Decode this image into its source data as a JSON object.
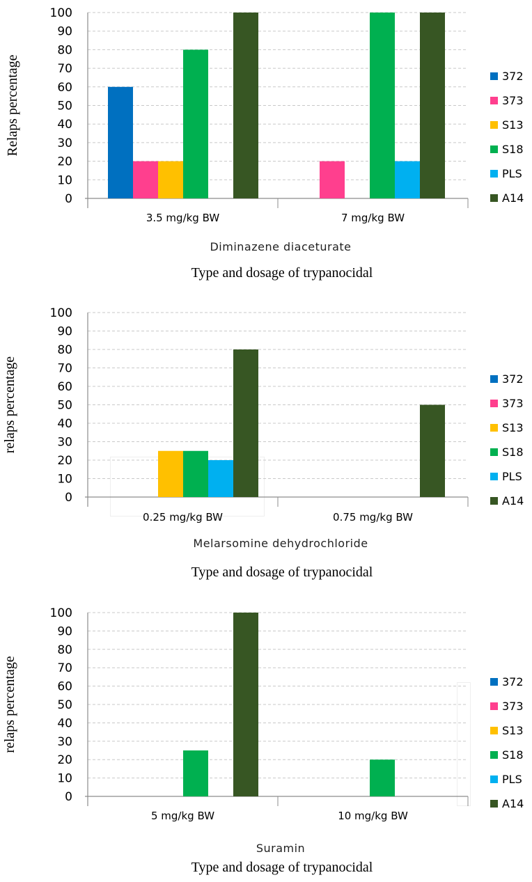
{
  "legend_colors": {
    "372": "#0070C0",
    "373": "#FF3F8E",
    "S13": "#FFC000",
    "S18": "#00B050",
    "PLS": "#00B0F0",
    "A14": "#375623"
  },
  "chart_data": [
    {
      "type": "bar",
      "ylabel": "Relaps percentage",
      "group_label": "Diminazene diaceturate",
      "xlabel": "Type and dosage of trypanocidal",
      "categories": [
        "3.5 mg/kg BW",
        "7 mg/kg BW"
      ],
      "ylim": [
        0,
        100
      ],
      "yticks": [
        "0",
        "10",
        "20",
        "30",
        "40",
        "50",
        "60",
        "70",
        "80",
        "90",
        "100"
      ],
      "grid": true,
      "legend_position": "right",
      "series": [
        {
          "name": "372",
          "values": [
            60,
            0
          ]
        },
        {
          "name": "373",
          "values": [
            20,
            20
          ]
        },
        {
          "name": "S13",
          "values": [
            20,
            0
          ]
        },
        {
          "name": "S18",
          "values": [
            80,
            100
          ]
        },
        {
          "name": "PLS",
          "values": [
            0,
            20
          ]
        },
        {
          "name": "A14",
          "values": [
            100,
            100
          ]
        }
      ]
    },
    {
      "type": "bar",
      "ylabel": "relaps percentage",
      "group_label": "Melarsomine dehydrochloride",
      "xlabel": "Type and dosage of trypanocidal",
      "categories": [
        "0.25 mg/kg BW",
        "0.75 mg/kg BW"
      ],
      "ylim": [
        0,
        100
      ],
      "yticks": [
        "0",
        "10",
        "20",
        "30",
        "40",
        "50",
        "60",
        "70",
        "80",
        "90",
        "100"
      ],
      "grid": true,
      "legend_position": "right",
      "series": [
        {
          "name": "372",
          "values": [
            0,
            0
          ]
        },
        {
          "name": "373",
          "values": [
            0,
            0
          ]
        },
        {
          "name": "S13",
          "values": [
            25,
            0
          ]
        },
        {
          "name": "S18",
          "values": [
            25,
            0
          ]
        },
        {
          "name": "PLS",
          "values": [
            20,
            0
          ]
        },
        {
          "name": "A14",
          "values": [
            80,
            50
          ]
        }
      ]
    },
    {
      "type": "bar",
      "ylabel": "relaps percentage",
      "group_label": "Suramin",
      "xlabel": "Type and dosage of trypanocidal",
      "categories": [
        "5 mg/kg BW",
        "10 mg/kg BW"
      ],
      "ylim": [
        0,
        100
      ],
      "yticks": [
        "0",
        "10",
        "20",
        "30",
        "40",
        "50",
        "60",
        "70",
        "80",
        "90",
        "100"
      ],
      "grid": true,
      "legend_position": "right",
      "series": [
        {
          "name": "372",
          "values": [
            0,
            0
          ]
        },
        {
          "name": "373",
          "values": [
            0,
            0
          ]
        },
        {
          "name": "S13",
          "values": [
            0,
            0
          ]
        },
        {
          "name": "S18",
          "values": [
            25,
            20
          ]
        },
        {
          "name": "PLS",
          "values": [
            0,
            0
          ]
        },
        {
          "name": "A14",
          "values": [
            100,
            0
          ]
        }
      ]
    }
  ]
}
